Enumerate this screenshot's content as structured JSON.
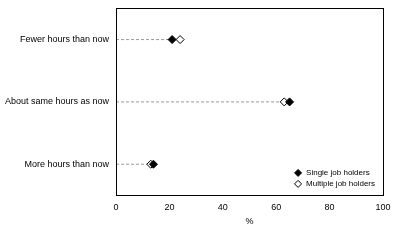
{
  "chart_data": {
    "type": "dot",
    "orientation": "horizontal",
    "categories": [
      "Fewer hours than now",
      "About same hours as now",
      "More hours than now"
    ],
    "series": [
      {
        "name": "Single job holders",
        "color": "#000000",
        "marker": "diamond",
        "values": [
          21,
          65,
          14
        ]
      },
      {
        "name": "Multiple job holders",
        "color": "#000000",
        "marker": "open_diamond",
        "values": [
          24,
          63,
          13
        ]
      }
    ],
    "x_label": "%",
    "xlim": [
      0,
      100
    ],
    "xticks": [
      0,
      20,
      40,
      60,
      80,
      100
    ],
    "grid": false,
    "legend": "lower right"
  }
}
